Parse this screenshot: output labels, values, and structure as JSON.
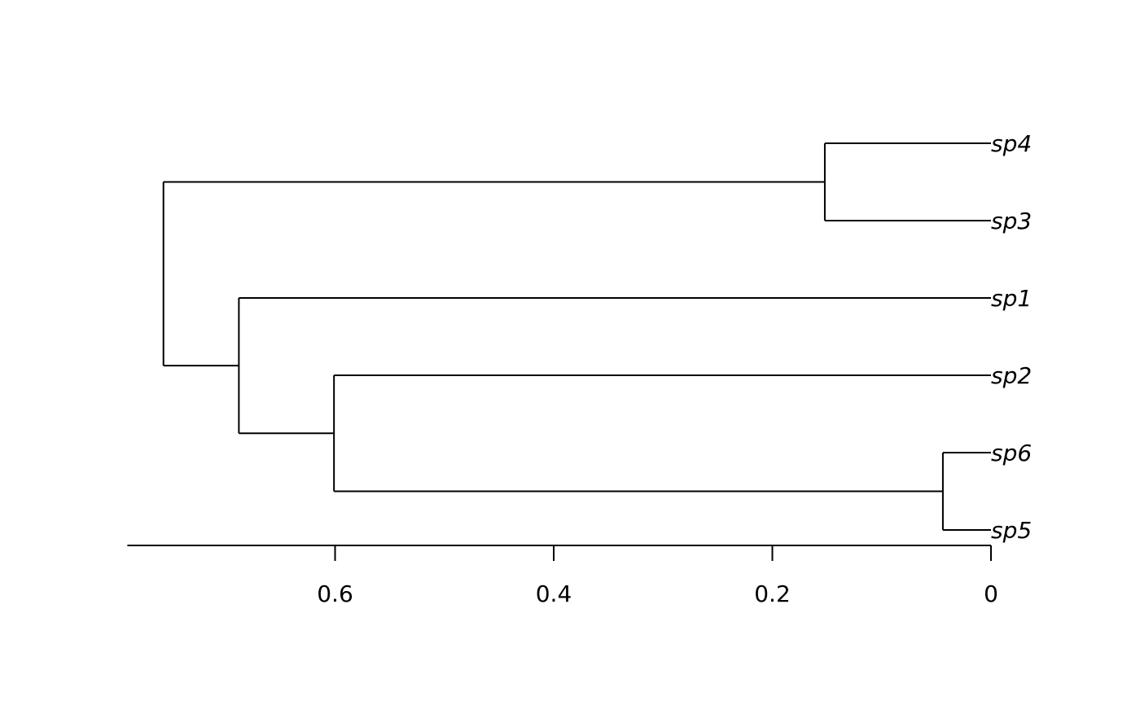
{
  "chart_data": {
    "type": "dendrogram",
    "orientation": "leaves-right",
    "title": "",
    "xlabel": "",
    "ylabel": "",
    "xlim": [
      0.79,
      0
    ],
    "x_ticks": [
      0.6,
      0.4,
      0.2,
      0
    ],
    "x_tick_labels": [
      "0.6",
      "0.4",
      "0.2",
      "0"
    ],
    "leaf_order": [
      "sp4",
      "sp3",
      "sp1",
      "sp2",
      "sp6",
      "sp5"
    ],
    "tree": {
      "height": 0.757,
      "children": [
        {
          "height": 0.152,
          "children": [
            {
              "label": "sp4"
            },
            {
              "label": "sp3"
            }
          ]
        },
        {
          "height": 0.688,
          "children": [
            {
              "label": "sp1"
            },
            {
              "height": 0.601,
              "children": [
                {
                  "label": "sp2"
                },
                {
                  "height": 0.044,
                  "children": [
                    {
                      "label": "sp6"
                    },
                    {
                      "label": "sp5"
                    }
                  ]
                }
              ]
            }
          ]
        }
      ]
    },
    "line_color": "#000000",
    "grid": false
  }
}
